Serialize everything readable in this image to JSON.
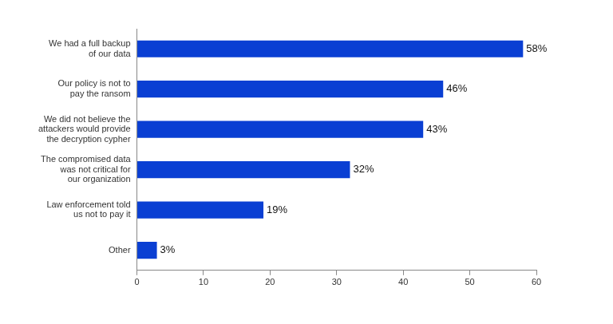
{
  "chart_data": {
    "type": "bar",
    "orientation": "horizontal",
    "categories": [
      "We had a full backup\nof our data",
      "Our policy is not to\npay the ransom",
      "We did not believe the\nattackers would provide\nthe decryption cypher",
      "The compromised data\nwas not critical for\nour organization",
      "Law enforcement told\nus not to pay it",
      "Other"
    ],
    "values": [
      58,
      46,
      43,
      32,
      19,
      3
    ],
    "value_labels": [
      "58%",
      "46%",
      "43%",
      "32%",
      "19%",
      "3%"
    ],
    "color": "#0a3fd3",
    "xlim": [
      0,
      60
    ],
    "xticks": [
      0,
      10,
      20,
      30,
      40,
      50,
      60
    ],
    "grid": false,
    "data_labels": true
  }
}
